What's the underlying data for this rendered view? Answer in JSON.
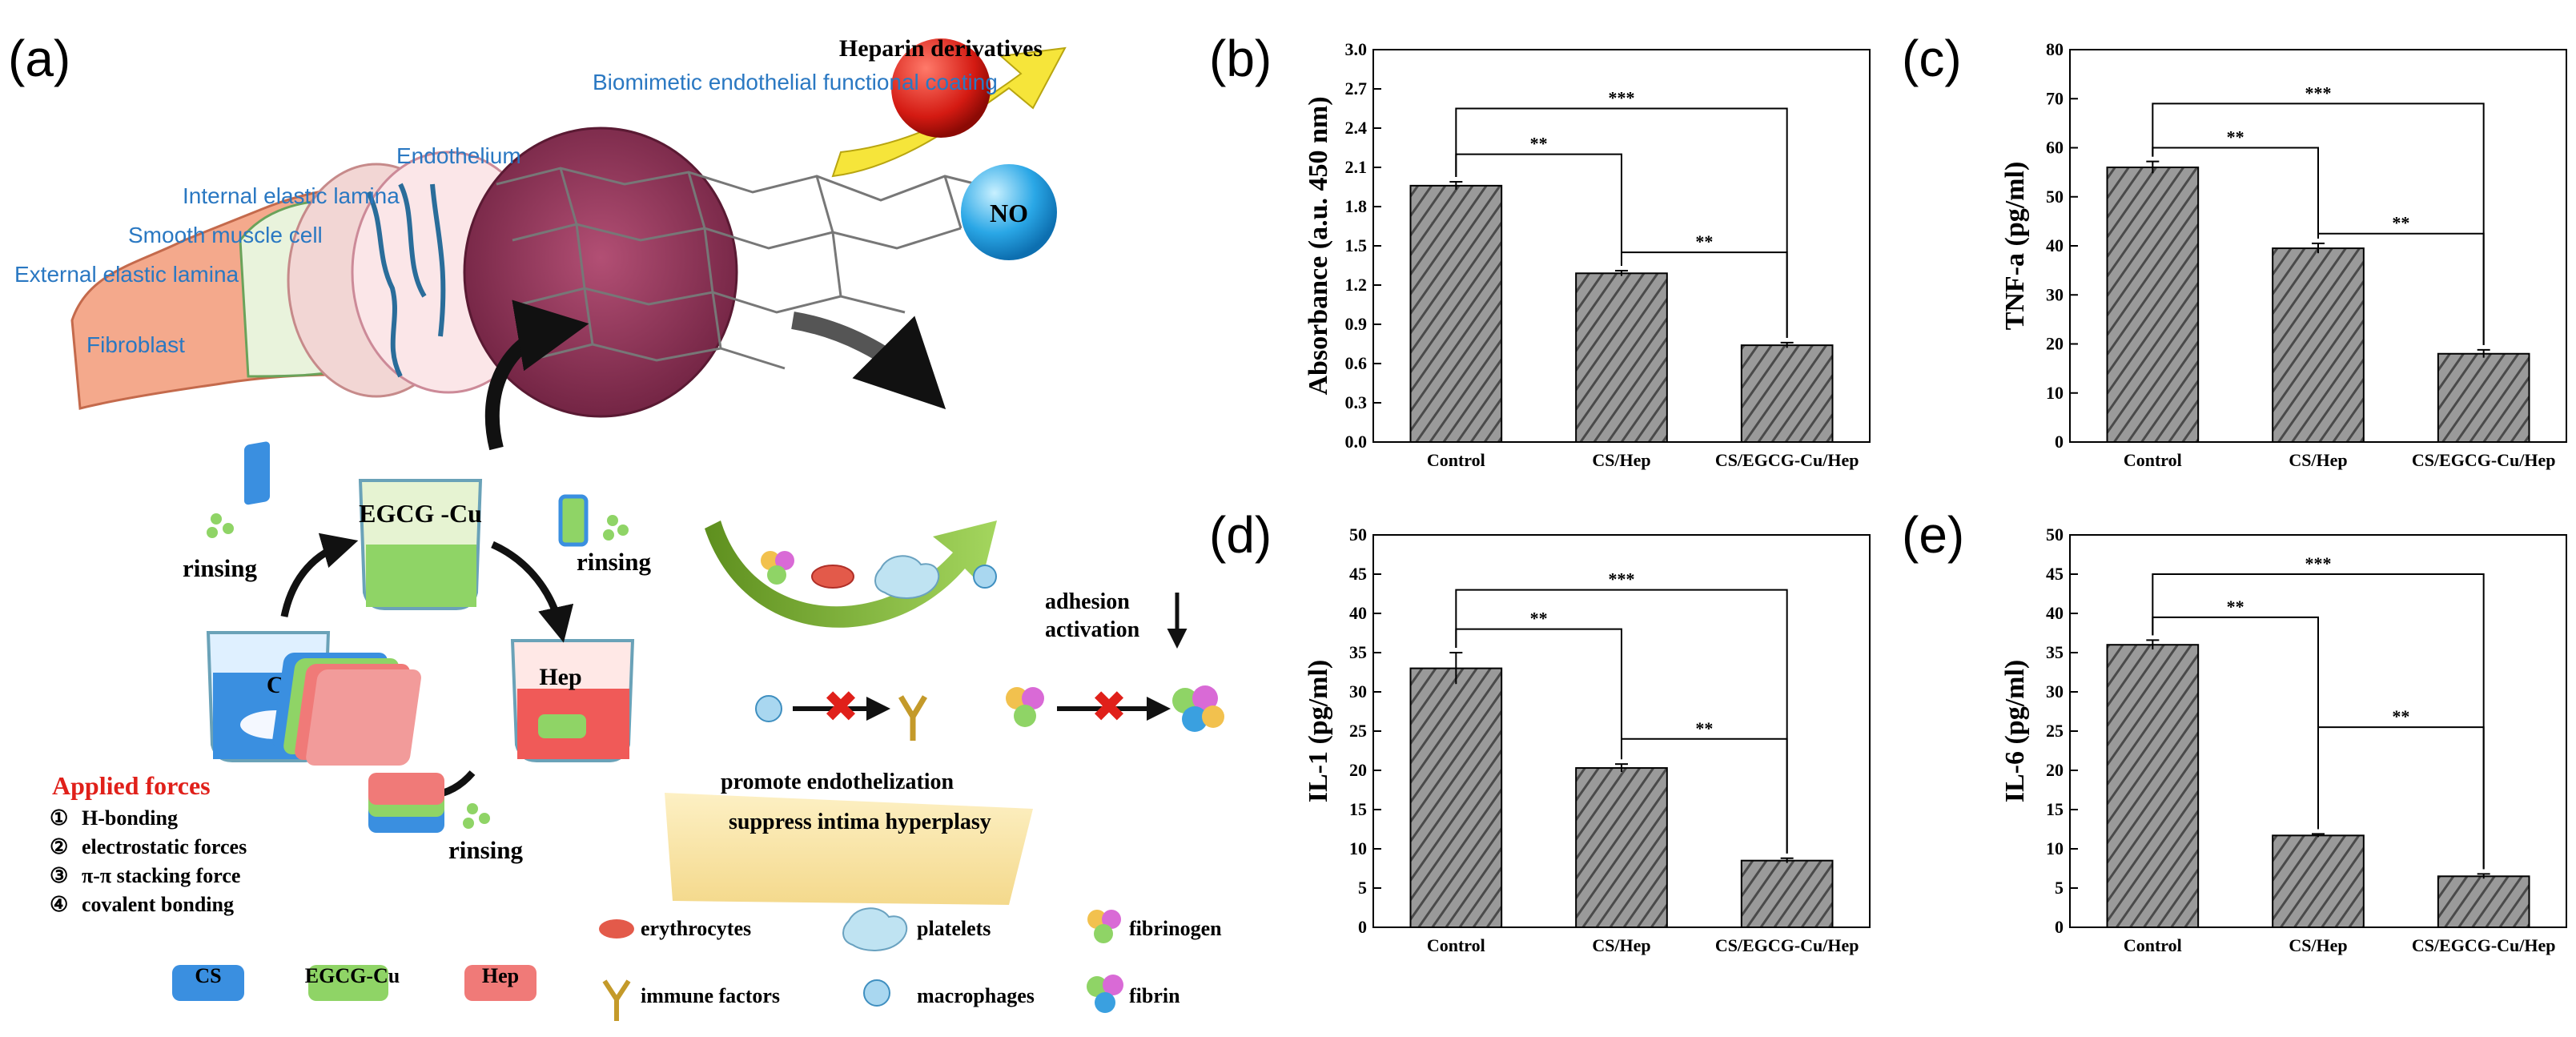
{
  "panel_labels": [
    "(a)",
    "(b)",
    "(c)",
    "(d)",
    "(e)"
  ],
  "schematic": {
    "vessel_layers": [
      "Biomimetic endothelial functional coating",
      "Endothelium",
      "Internal elastic lamina",
      "Smooth muscle cell",
      "External elastic lamina",
      "Fibroblast"
    ],
    "heparin": "Heparin derivatives",
    "no": "NO",
    "beakers": {
      "egcg": "EGCG -Cu",
      "cs": "CS",
      "hep": "Hep"
    },
    "rinsing": "rinsing",
    "forces_title": "Applied forces",
    "forces": [
      "H-bonding",
      "electrostatic forces",
      "π-π stacking force",
      "covalent bonding"
    ],
    "force_markers": [
      "①",
      "②",
      "③",
      "④"
    ],
    "adhesion": "adhesion",
    "activation": "activation",
    "promote": "promote endothelization",
    "suppress": "suppress intima hyperplasy",
    "legend": {
      "cs": "CS",
      "egcg": "EGCG-Cu",
      "hep": "Hep",
      "erythrocytes": "erythrocytes",
      "immune": "immune factors",
      "platelets": "platelets",
      "macrophages": "macrophages",
      "fibrinogen": "fibrinogen",
      "fibrin": "fibrin"
    },
    "colors": {
      "cs": "#3a8fe0",
      "egcg": "#8fd466",
      "hep": "#f07a78",
      "vessel": "#9e3a5e"
    }
  },
  "chart_data": [
    {
      "id": "b",
      "type": "bar",
      "categories": [
        "Control",
        "CS/Hep",
        "CS/EGCG-Cu/Hep"
      ],
      "values": [
        1.96,
        1.29,
        0.74
      ],
      "errors": [
        0.03,
        0.02,
        0.02
      ],
      "ylabel": "Absorbance (a.u. 450 nm)",
      "ylim": [
        0,
        3.0
      ],
      "yticks": [
        "0.0",
        "0.3",
        "0.6",
        "0.9",
        "1.2",
        "1.5",
        "1.8",
        "2.1",
        "2.4",
        "2.7",
        "3.0"
      ],
      "significance": [
        {
          "from": 0,
          "to": 2,
          "label": "***",
          "level": 2.55
        },
        {
          "from": 0,
          "to": 1,
          "label": "**",
          "level": 2.2
        },
        {
          "from": 1,
          "to": 2,
          "label": "**",
          "level": 1.45
        }
      ]
    },
    {
      "id": "c",
      "type": "bar",
      "categories": [
        "Control",
        "CS/Hep",
        "CS/EGCG-Cu/Hep"
      ],
      "values": [
        56,
        39.5,
        18
      ],
      "errors": [
        1.2,
        1.0,
        0.8
      ],
      "ylabel": "TNF-a  (pg/ml)",
      "ylim": [
        0,
        80
      ],
      "yticks": [
        "0",
        "10",
        "20",
        "30",
        "40",
        "50",
        "60",
        "70",
        "80"
      ],
      "significance": [
        {
          "from": 0,
          "to": 2,
          "label": "***",
          "level": 69
        },
        {
          "from": 0,
          "to": 1,
          "label": "**",
          "level": 60
        },
        {
          "from": 1,
          "to": 2,
          "label": "**",
          "level": 42.5
        }
      ]
    },
    {
      "id": "d",
      "type": "bar",
      "categories": [
        "Control",
        "CS/Hep",
        "CS/EGCG-Cu/Hep"
      ],
      "values": [
        33,
        20.3,
        8.5
      ],
      "errors": [
        2.0,
        0.5,
        0.3
      ],
      "ylabel": "IL-1  (pg/ml)",
      "ylim": [
        0,
        50
      ],
      "yticks": [
        "0",
        "5",
        "10",
        "15",
        "20",
        "25",
        "30",
        "35",
        "40",
        "45",
        "50"
      ],
      "significance": [
        {
          "from": 0,
          "to": 2,
          "label": "***",
          "level": 43
        },
        {
          "from": 0,
          "to": 1,
          "label": "**",
          "level": 38
        },
        {
          "from": 1,
          "to": 2,
          "label": "**",
          "level": 24
        }
      ]
    },
    {
      "id": "e",
      "type": "bar",
      "categories": [
        "Control",
        "CS/Hep",
        "CS/EGCG-Cu/Hep"
      ],
      "values": [
        36,
        11.7,
        6.5
      ],
      "errors": [
        0.6,
        0.2,
        0.3
      ],
      "ylabel": "IL-6  (pg/ml)",
      "ylim": [
        0,
        50
      ],
      "yticks": [
        "0",
        "5",
        "10",
        "15",
        "20",
        "25",
        "30",
        "35",
        "40",
        "45",
        "50"
      ],
      "significance": [
        {
          "from": 0,
          "to": 2,
          "label": "***",
          "level": 45
        },
        {
          "from": 0,
          "to": 1,
          "label": "**",
          "level": 39.5
        },
        {
          "from": 1,
          "to": 2,
          "label": "**",
          "level": 25.5
        }
      ]
    }
  ]
}
